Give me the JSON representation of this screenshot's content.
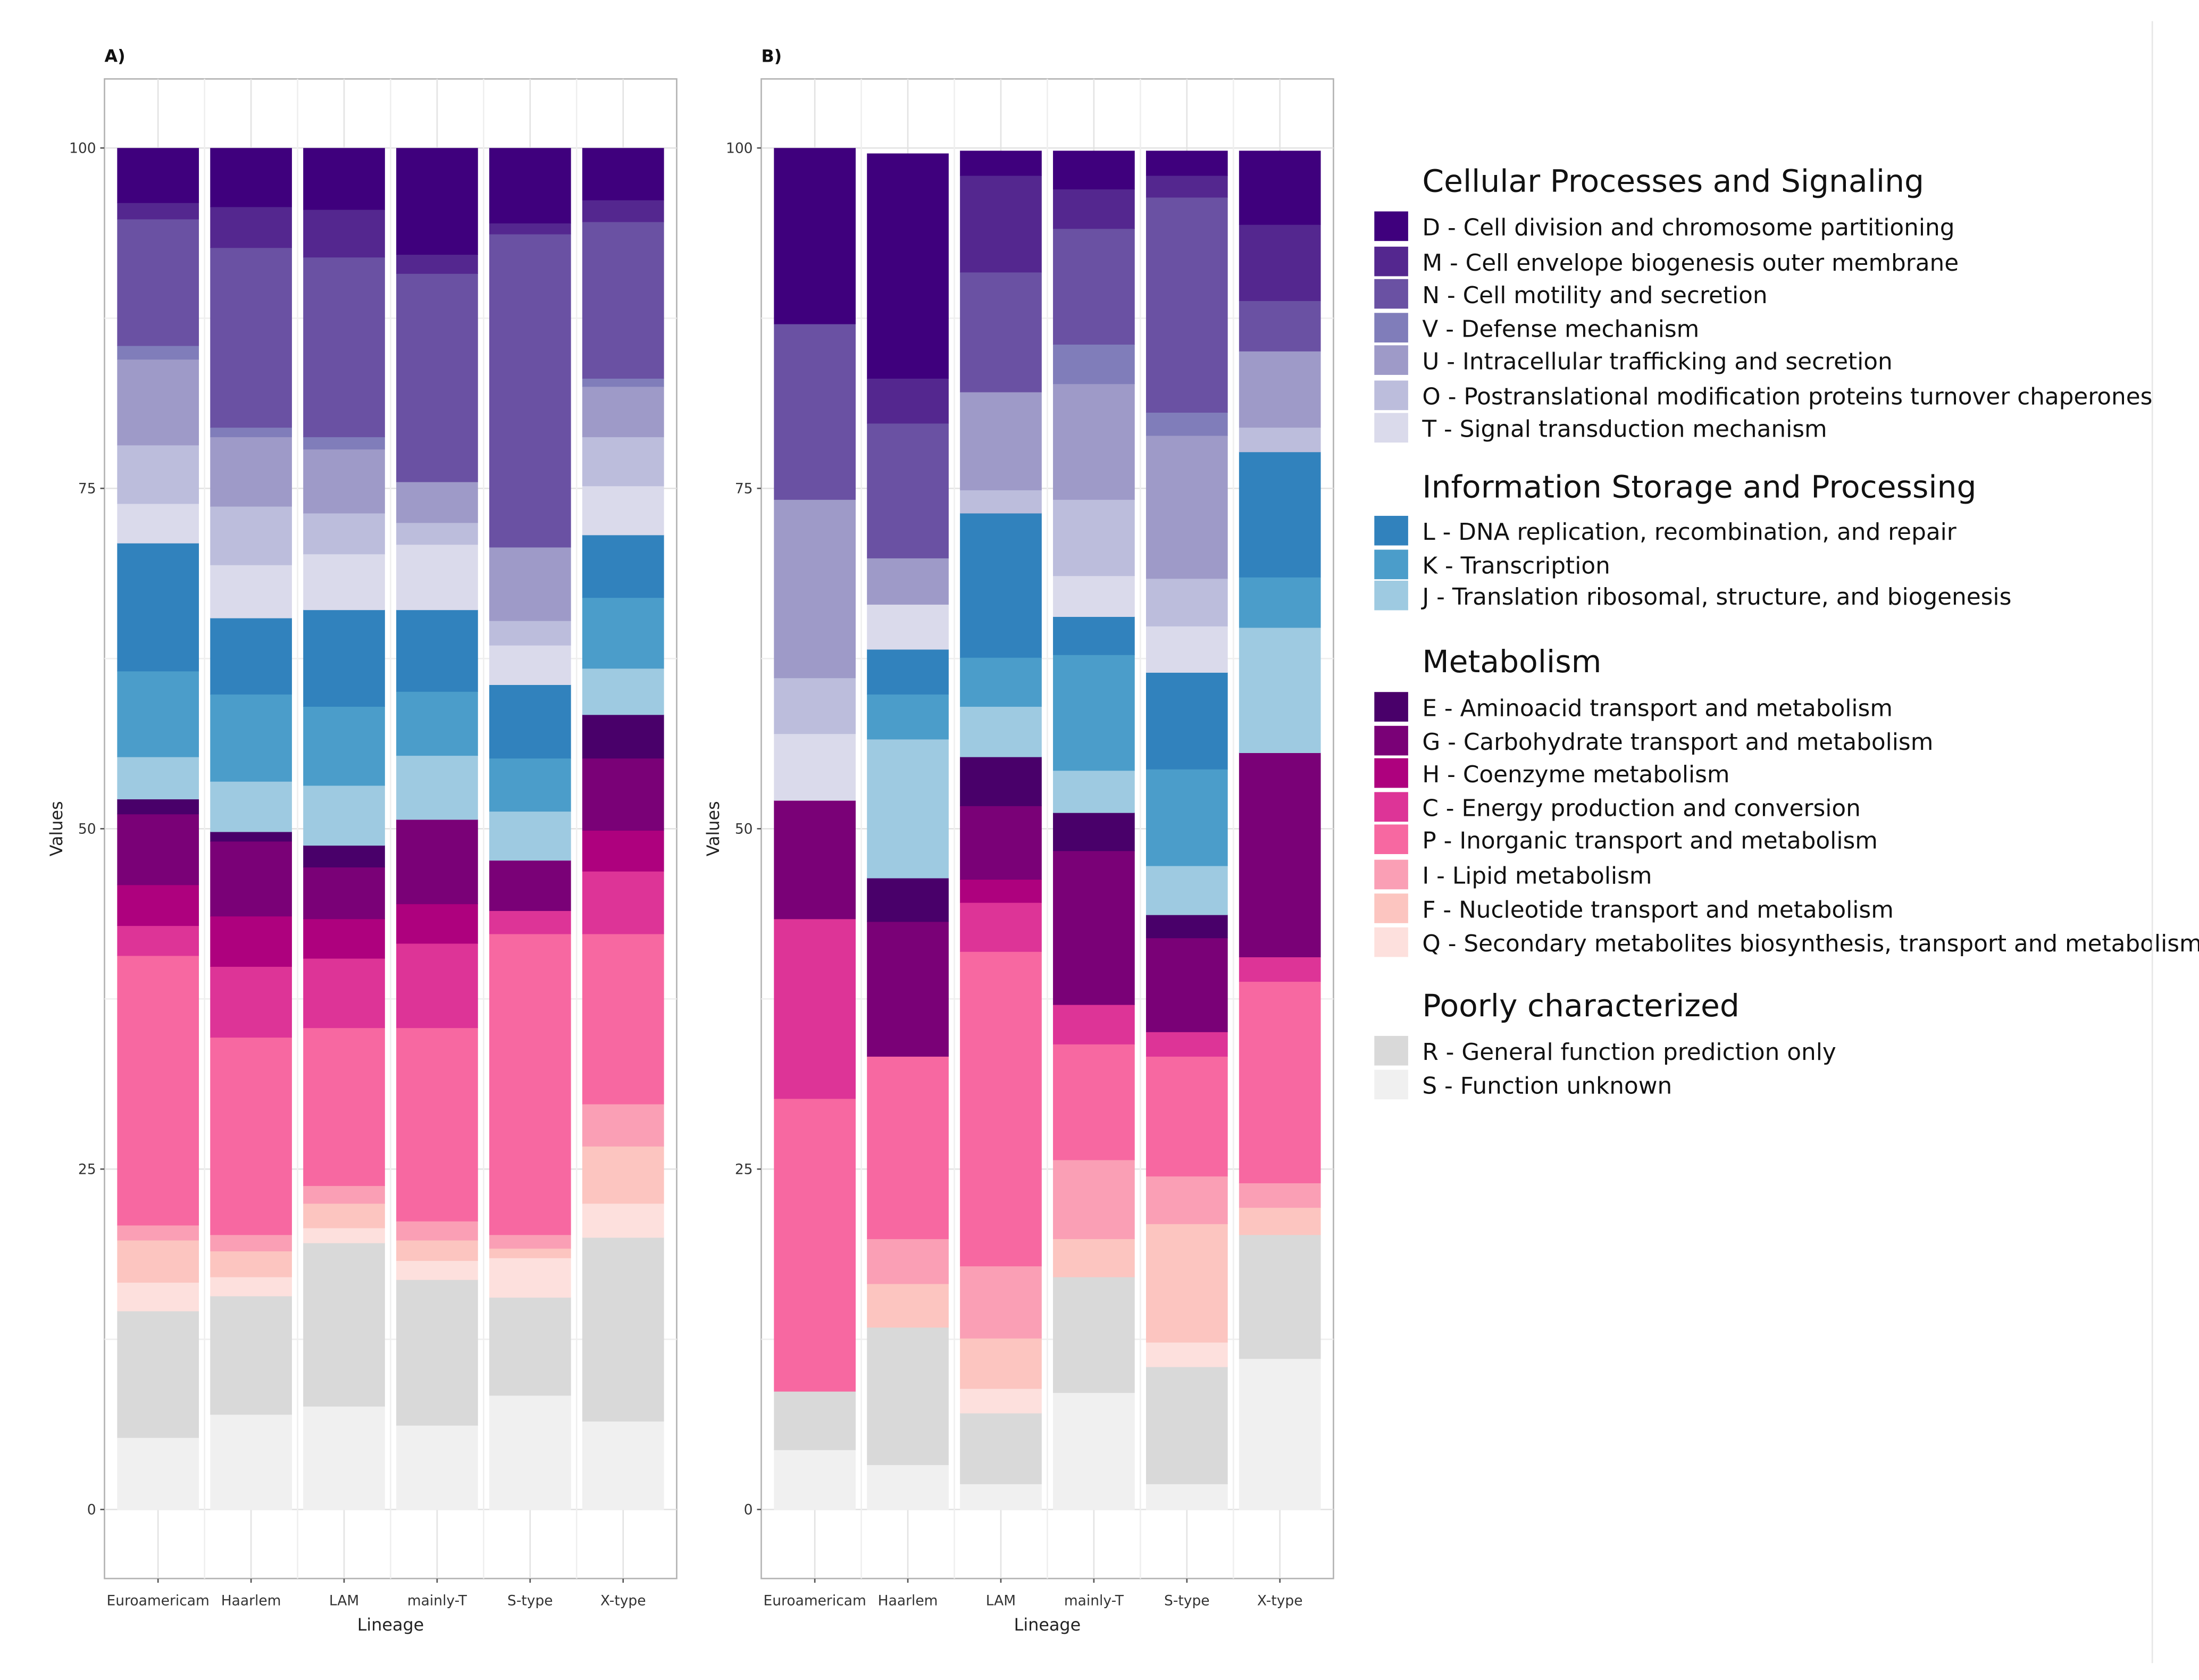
{
  "legend": {
    "groups": [
      {
        "title": "Cellular Processes and Signaling",
        "items": [
          {
            "code": "D",
            "label": "D - Cell division and chromosome partitioning",
            "color": "#3f007d"
          },
          {
            "code": "M",
            "label": "M - Cell envelope biogenesis outer membrane",
            "color": "#54278f"
          },
          {
            "code": "N",
            "label": "N - Cell motility and secretion",
            "color": "#6a51a3"
          },
          {
            "code": "V",
            "label": "V - Defense mechanism",
            "color": "#807dba"
          },
          {
            "code": "U",
            "label": "U - Intracellular trafficking and secretion",
            "color": "#9e9ac8"
          },
          {
            "code": "O",
            "label": "O - Postranslational modification proteins turnover chaperones",
            "color": "#bcbddc"
          },
          {
            "code": "T",
            "label": "T - Signal transduction mechanism",
            "color": "#dadaeb"
          }
        ]
      },
      {
        "title": "Information Storage and Processing",
        "items": [
          {
            "code": "L",
            "label": "L - DNA replication, recombination, and repair",
            "color": "#3182bd"
          },
          {
            "code": "K",
            "label": "K - Transcription",
            "color": "#4b9dca"
          },
          {
            "code": "J",
            "label": "J - Translation ribosomal, structure, and biogenesis",
            "color": "#9ecae1"
          }
        ]
      },
      {
        "title": "Metabolism",
        "items": [
          {
            "code": "E",
            "label": "E - Aminoacid transport and metabolism",
            "color": "#49006a"
          },
          {
            "code": "G",
            "label": "G - Carbohydrate transport and metabolism",
            "color": "#7a0177"
          },
          {
            "code": "H",
            "label": "H - Coenzyme metabolism",
            "color": "#ae017e"
          },
          {
            "code": "C",
            "label": "C - Energy production and conversion",
            "color": "#dd3497"
          },
          {
            "code": "P",
            "label": "P - Inorganic transport and metabolism",
            "color": "#f768a1"
          },
          {
            "code": "I",
            "label": "I - Lipid metabolism",
            "color": "#fa9fb5"
          },
          {
            "code": "F",
            "label": "F - Nucleotide transport and metabolism",
            "color": "#fcc5c0"
          },
          {
            "code": "Q",
            "label": "Q - Secondary metabolites biosynthesis, transport and metabolism",
            "color": "#fde0dd"
          }
        ]
      },
      {
        "title": "Poorly characterized",
        "items": [
          {
            "code": "R",
            "label": "R - General function prediction only",
            "color": "#d9d9d9"
          },
          {
            "code": "S",
            "label": "S - Function unknown",
            "color": "#f0f0f0"
          }
        ]
      }
    ]
  },
  "chart_data": [
    {
      "type": "bar",
      "stacked": true,
      "panel_label": "A)",
      "xlabel": "Lineage",
      "ylabel": "Values",
      "ylim": [
        0,
        100
      ],
      "yticks": [
        0,
        25,
        50,
        75,
        100
      ],
      "grid": true,
      "legend_placement": "right",
      "categories": [
        "Euroamericam",
        "Haarlem",
        "LAM",
        "mainly-T",
        "S-type",
        "X-type"
      ],
      "series": [
        {
          "code": "S",
          "values": [
            5.3,
            7.0,
            7.6,
            6.2,
            8.4,
            6.5
          ]
        },
        {
          "code": "R",
          "values": [
            9.3,
            8.7,
            12.0,
            10.7,
            7.2,
            13.5
          ]
        },
        {
          "code": "Q",
          "values": [
            2.1,
            1.4,
            1.1,
            1.4,
            2.9,
            2.5
          ]
        },
        {
          "code": "F",
          "values": [
            3.1,
            1.9,
            1.8,
            1.5,
            0.7,
            4.2
          ]
        },
        {
          "code": "I",
          "values": [
            1.1,
            1.2,
            1.3,
            1.4,
            1.0,
            3.1
          ]
        },
        {
          "code": "P",
          "values": [
            19.8,
            14.5,
            11.6,
            14.2,
            22.1,
            12.5
          ]
        },
        {
          "code": "C",
          "values": [
            2.2,
            5.2,
            5.1,
            6.2,
            1.7,
            4.6
          ]
        },
        {
          "code": "H",
          "values": [
            3.0,
            3.7,
            2.9,
            2.9,
            0,
            3.0
          ]
        },
        {
          "code": "G",
          "values": [
            5.2,
            5.5,
            3.8,
            6.2,
            3.7,
            5.3
          ]
        },
        {
          "code": "E",
          "values": [
            1.1,
            0.7,
            1.6,
            0,
            0,
            3.2
          ]
        },
        {
          "code": "J",
          "values": [
            3.1,
            3.7,
            4.4,
            4.7,
            3.6,
            3.4
          ]
        },
        {
          "code": "K",
          "values": [
            6.3,
            6.4,
            5.8,
            4.7,
            3.9,
            5.2
          ]
        },
        {
          "code": "L",
          "values": [
            9.4,
            5.6,
            7.1,
            6.0,
            5.4,
            4.6
          ]
        },
        {
          "code": "T",
          "values": [
            2.9,
            3.9,
            4.1,
            4.8,
            2.9,
            3.6
          ]
        },
        {
          "code": "O",
          "values": [
            4.3,
            4.3,
            3.0,
            1.6,
            1.8,
            3.6
          ]
        },
        {
          "code": "U",
          "values": [
            6.3,
            5.1,
            4.7,
            3.0,
            5.4,
            3.7
          ]
        },
        {
          "code": "V",
          "values": [
            1.0,
            0.7,
            0.9,
            0,
            0,
            0.6
          ]
        },
        {
          "code": "N",
          "values": [
            9.3,
            13.2,
            13.2,
            15.3,
            23.0,
            11.5
          ]
        },
        {
          "code": "M",
          "values": [
            1.2,
            3.0,
            3.5,
            1.4,
            0.8,
            1.6
          ]
        },
        {
          "code": "D",
          "values": [
            4.0,
            4.3,
            4.5,
            7.8,
            5.5,
            3.8
          ]
        }
      ]
    },
    {
      "type": "bar",
      "stacked": true,
      "panel_label": "B)",
      "xlabel": "Lineage",
      "ylabel": "Values",
      "ylim": [
        0,
        100
      ],
      "yticks": [
        0,
        25,
        50,
        75,
        100
      ],
      "grid": true,
      "legend_placement": "right",
      "categories": [
        "Euroamericam",
        "Haarlem",
        "LAM",
        "mainly-T",
        "S-type",
        "X-type"
      ],
      "series": [
        {
          "code": "S",
          "values": [
            4.4,
            3.3,
            1.9,
            8.6,
            1.9,
            11.1
          ]
        },
        {
          "code": "R",
          "values": [
            4.3,
            10.1,
            5.2,
            8.5,
            8.6,
            9.1
          ]
        },
        {
          "code": "Q",
          "values": [
            0,
            0,
            1.8,
            0,
            1.8,
            0
          ]
        },
        {
          "code": "F",
          "values": [
            0,
            3.2,
            3.7,
            2.8,
            8.7,
            2.0
          ]
        },
        {
          "code": "I",
          "values": [
            0,
            3.3,
            5.3,
            5.8,
            3.5,
            1.8
          ]
        },
        {
          "code": "P",
          "values": [
            21.5,
            13.4,
            23.1,
            8.5,
            8.8,
            14.8
          ]
        },
        {
          "code": "C",
          "values": [
            13.2,
            0,
            3.6,
            2.9,
            1.8,
            1.8
          ]
        },
        {
          "code": "H",
          "values": [
            0,
            0,
            1.7,
            0,
            0,
            0
          ]
        },
        {
          "code": "G",
          "values": [
            8.7,
            9.9,
            5.4,
            11.3,
            6.9,
            15.0
          ]
        },
        {
          "code": "E",
          "values": [
            0,
            3.2,
            3.6,
            2.8,
            1.7,
            0
          ]
        },
        {
          "code": "J",
          "values": [
            0,
            10.2,
            3.7,
            3.1,
            3.6,
            9.2
          ]
        },
        {
          "code": "K",
          "values": [
            0,
            3.3,
            3.6,
            8.5,
            7.1,
            3.7
          ]
        },
        {
          "code": "L",
          "values": [
            0,
            3.3,
            10.6,
            2.8,
            7.1,
            9.2
          ]
        },
        {
          "code": "T",
          "values": [
            4.9,
            3.3,
            0,
            3.0,
            3.4,
            0
          ]
        },
        {
          "code": "O",
          "values": [
            4.1,
            0,
            1.7,
            5.6,
            3.5,
            1.8
          ]
        },
        {
          "code": "U",
          "values": [
            13.1,
            3.4,
            7.2,
            8.5,
            10.5,
            5.6
          ]
        },
        {
          "code": "V",
          "values": [
            0,
            0,
            0,
            2.9,
            1.7,
            0
          ]
        },
        {
          "code": "N",
          "values": [
            12.9,
            9.9,
            8.8,
            8.5,
            15.8,
            3.7
          ]
        },
        {
          "code": "M",
          "values": [
            0,
            3.3,
            7.1,
            2.9,
            1.6,
            5.6
          ]
        },
        {
          "code": "D",
          "values": [
            12.9,
            16.5,
            1.8,
            2.8,
            1.8,
            5.4
          ]
        }
      ]
    }
  ]
}
